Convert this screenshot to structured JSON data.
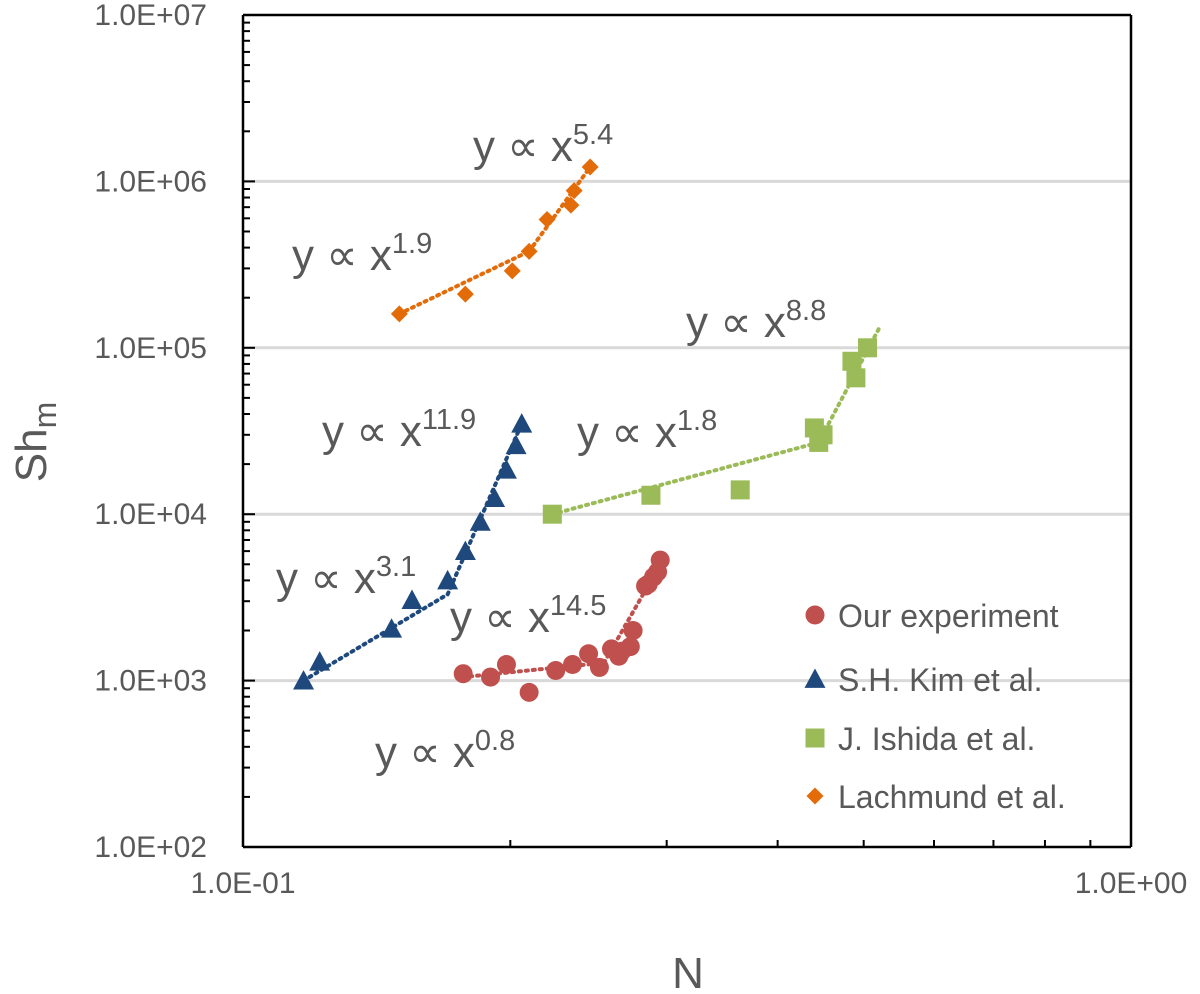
{
  "chart_data": {
    "type": "scatter",
    "xlabel": "N",
    "ylabel": {
      "base": "Sh",
      "sub": "m"
    },
    "x_scale": "log",
    "y_scale": "log",
    "xlim": [
      0.1,
      1.0
    ],
    "ylim": [
      100,
      10000000
    ],
    "x_ticks": [
      {
        "value": 0.1,
        "label": "1.0E-01"
      },
      {
        "value": 1.0,
        "label": "1.0E+00"
      }
    ],
    "y_ticks": [
      {
        "value": 100,
        "label": "1.0E+02"
      },
      {
        "value": 1000,
        "label": "1.0E+03"
      },
      {
        "value": 10000,
        "label": "1.0E+04"
      },
      {
        "value": 100000,
        "label": "1.0E+05"
      },
      {
        "value": 1000000,
        "label": "1.0E+06"
      },
      {
        "value": 10000000,
        "label": "1.0E+07"
      }
    ],
    "grid": "horizontal major",
    "legend_position": "bottom-right",
    "series": [
      {
        "name": "Our experiment",
        "marker": "circle",
        "color": "#C0504D",
        "x": [
          0.177,
          0.19,
          0.198,
          0.21,
          0.225,
          0.235,
          0.245,
          0.252,
          0.26,
          0.265,
          0.267,
          0.273,
          0.275,
          0.284,
          0.286,
          0.29,
          0.293,
          0.295
        ],
        "y": [
          1100,
          1050,
          1250,
          850,
          1150,
          1250,
          1450,
          1200,
          1550,
          1400,
          1500,
          1600,
          2000,
          3700,
          3800,
          4200,
          4500,
          5300
        ],
        "fits": [
          {
            "x": [
              0.177,
              0.255
            ],
            "y": [
              1050,
              1280
            ]
          },
          {
            "x": [
              0.255,
              0.295
            ],
            "y": [
              1280,
              5000
            ]
          }
        ]
      },
      {
        "name": "S.H. Kim et al.",
        "marker": "triangle",
        "color": "#1F497D",
        "x": [
          0.117,
          0.122,
          0.147,
          0.155,
          0.17,
          0.178,
          0.185,
          0.192,
          0.198,
          0.203,
          0.206
        ],
        "y": [
          1000,
          1300,
          2050,
          3050,
          4000,
          6000,
          9000,
          12500,
          18500,
          26000,
          35000
        ],
        "fits": [
          {
            "x": [
              0.117,
              0.17
            ],
            "y": [
              1000,
              3300
            ]
          },
          {
            "x": [
              0.17,
              0.206
            ],
            "y": [
              3300,
              35000
            ]
          }
        ]
      },
      {
        "name": "J. Ishida et al.",
        "marker": "square",
        "color": "#9BBB59",
        "x": [
          0.223,
          0.288,
          0.363,
          0.44,
          0.445,
          0.45,
          0.485,
          0.49,
          0.505
        ],
        "y": [
          10000,
          13000,
          14000,
          33000,
          27000,
          30000,
          83000,
          66000,
          100000
        ],
        "fits": [
          {
            "x": [
              0.223,
              0.445
            ],
            "y": [
              10000,
              27000
            ]
          },
          {
            "x": [
              0.445,
              0.52
            ],
            "y": [
              27000,
              130000
            ]
          }
        ]
      },
      {
        "name": "Lachmund et al.",
        "marker": "diamond",
        "color": "#E36C09",
        "x": [
          0.15,
          0.178,
          0.201,
          0.21,
          0.22,
          0.234,
          0.236,
          0.246
        ],
        "y": [
          160000,
          210000,
          290000,
          380000,
          590000,
          720000,
          880000,
          1220000
        ],
        "fits": [
          {
            "x": [
              0.15,
              0.21
            ],
            "y": [
              160000,
              380000
            ]
          },
          {
            "x": [
              0.21,
              0.246
            ],
            "y": [
              380000,
              1220000
            ]
          }
        ]
      }
    ],
    "annotations": [
      {
        "base": "y ∝ x",
        "exp": "5.4",
        "color": "#595959"
      },
      {
        "base": "y ∝ x",
        "exp": "1.9",
        "color": "#595959"
      },
      {
        "base": "y ∝ x",
        "exp": "8.8",
        "color": "#595959"
      },
      {
        "base": "y ∝ x",
        "exp": "11.9",
        "color": "#595959"
      },
      {
        "base": "y ∝ x",
        "exp": "1.8",
        "color": "#595959"
      },
      {
        "base": "y ∝ x",
        "exp": "3.1",
        "color": "#595959"
      },
      {
        "base": "y ∝ x",
        "exp": "14.5",
        "color": "#595959"
      },
      {
        "base": "y ∝ x",
        "exp": "0.8",
        "color": "#595959"
      }
    ]
  }
}
